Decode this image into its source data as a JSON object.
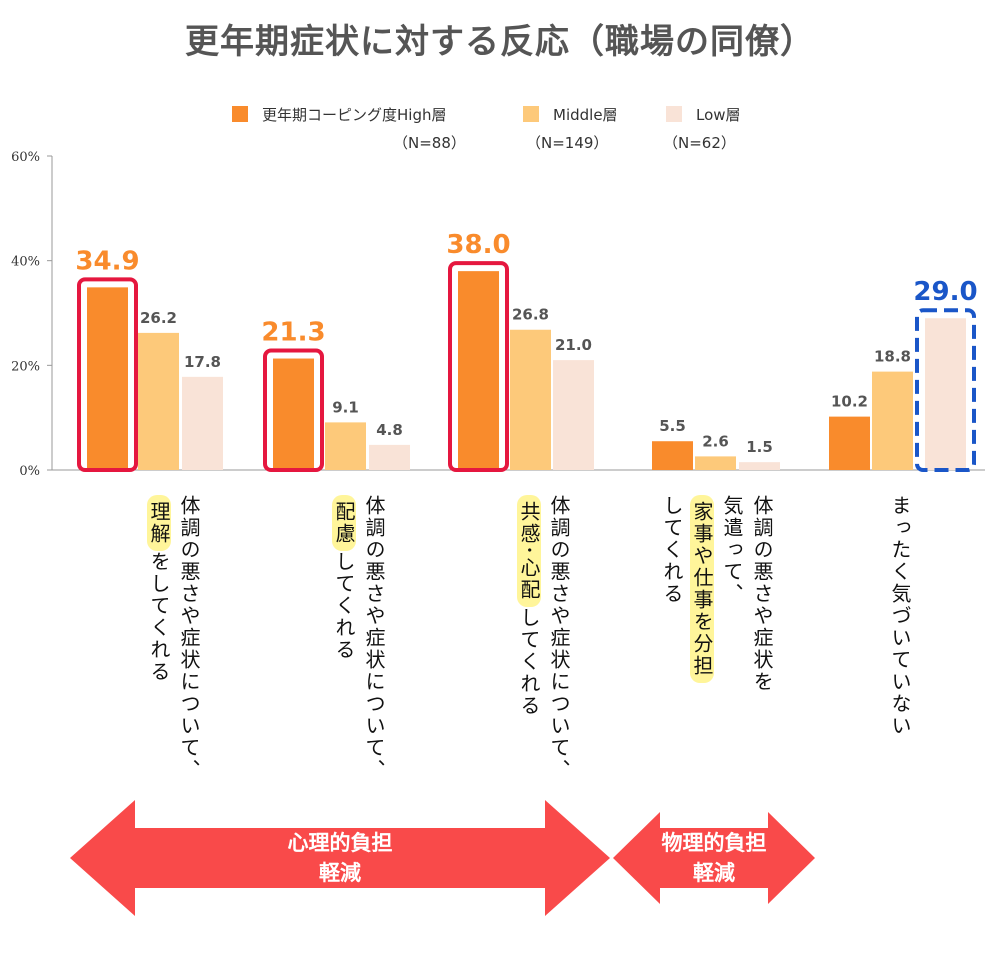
{
  "chart_data": {
    "type": "bar",
    "title": "更年期症状に対する反応（職場の同僚）",
    "ylim": [
      0,
      60
    ],
    "yticks": [
      "0%",
      "20%",
      "40%",
      "60%"
    ],
    "legend_position": "top",
    "series": [
      {
        "name": "更年期コーピング度High層",
        "n": "（N=88）",
        "color": "#f98b2c",
        "values": [
          34.9,
          21.3,
          38.0,
          5.5,
          10.2
        ]
      },
      {
        "name": "Middle層",
        "n": "（N=149）",
        "color": "#fdc97a",
        "values": [
          26.2,
          9.1,
          26.8,
          2.6,
          18.8
        ]
      },
      {
        "name": "Low層",
        "n": "（N=62）",
        "color": "#f9e3d7",
        "values": [
          17.8,
          4.8,
          21.0,
          1.5,
          29.0
        ]
      }
    ],
    "value_labels": [
      [
        "34.9",
        "26.2",
        "17.8"
      ],
      [
        "21.3",
        "9.1",
        "4.8"
      ],
      [
        "38.0",
        "26.8",
        "21.0"
      ],
      [
        "5.5",
        "2.6",
        "1.5"
      ],
      [
        "10.2",
        "18.8",
        "29.0"
      ]
    ],
    "highlighted": [
      {
        "category": 0,
        "series": 0,
        "color": "#e5173f"
      },
      {
        "category": 1,
        "series": 0,
        "color": "#e5173f"
      },
      {
        "category": 2,
        "series": 0,
        "color": "#e5173f"
      },
      {
        "category": 4,
        "series": 2,
        "color": "#1a56c8"
      }
    ],
    "categories": [
      [
        [
          {
            "t": "体調の悪さや症状について、"
          }
        ],
        [
          {
            "t": "理解",
            "hl": true
          },
          {
            "t": "をしてくれる"
          }
        ]
      ],
      [
        [
          {
            "t": "体調の悪さや症状について、"
          }
        ],
        [
          {
            "t": "配慮",
            "hl": true
          },
          {
            "t": "してくれる"
          }
        ]
      ],
      [
        [
          {
            "t": "体調の悪さや症状について、"
          }
        ],
        [
          {
            "t": "共感･心配",
            "hl": true
          },
          {
            "t": "してくれる"
          }
        ]
      ],
      [
        [
          {
            "t": "体調の悪さや症状を"
          }
        ],
        [
          {
            "t": "気遣って、"
          }
        ],
        [
          {
            "t": "家事や仕事を分担",
            "hl": true
          }
        ],
        [
          {
            "t": "してくれる"
          }
        ]
      ],
      [
        [
          {
            "t": "まったく気づいていない"
          }
        ]
      ]
    ],
    "arrows": [
      {
        "label1": "心理的負担",
        "label2": "軽減"
      },
      {
        "label1": "物理的負担",
        "label2": "軽減"
      }
    ],
    "arrow_color": "#f94a4a"
  }
}
